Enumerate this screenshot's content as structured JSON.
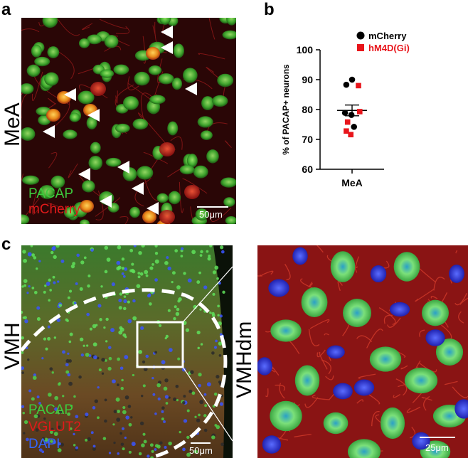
{
  "panels": {
    "a": {
      "letter": "a",
      "region": "MeA",
      "channels": [
        {
          "name": "PACAP",
          "color": "#3dcc3d"
        },
        {
          "name": "mCherry",
          "color": "#e01a1a"
        }
      ],
      "scale": "50μm"
    },
    "b": {
      "letter": "b"
    },
    "c": {
      "letter": "c",
      "region": "VMH",
      "zoom_region": "VMHdm",
      "channels": [
        {
          "name": "PACAP",
          "color": "#3dcc3d"
        },
        {
          "name": "VGLUT2",
          "color": "#e01a1a"
        },
        {
          "name": "DAPI",
          "color": "#3366ff"
        }
      ],
      "scale_left": "50μm",
      "scale_right": "25μm"
    }
  },
  "chart_data": {
    "type": "scatter",
    "ylabel": "% of PACAP+ neurons",
    "xlabel": "MeA",
    "ylim": [
      60,
      100
    ],
    "yticks": [
      60,
      70,
      80,
      90,
      100
    ],
    "mean": 79.7,
    "sem_range": [
      77.9,
      81.5
    ],
    "series": [
      {
        "name": "mCherry",
        "color": "#000000",
        "marker": "circle",
        "points": [
          {
            "x": 0.0,
            "y": 90.0
          },
          {
            "x": -0.9,
            "y": 88.3
          },
          {
            "x": -1.1,
            "y": 78.9
          },
          {
            "x": -0.1,
            "y": 78.2
          },
          {
            "x": 0.3,
            "y": 74.2
          }
        ]
      },
      {
        "name": "hM4D(Gi)",
        "color": "#e8151b",
        "marker": "square",
        "points": [
          {
            "x": 1.0,
            "y": 88.0
          },
          {
            "x": 1.2,
            "y": 79.3
          },
          {
            "x": -0.7,
            "y": 75.8
          },
          {
            "x": -0.9,
            "y": 72.8
          },
          {
            "x": -0.2,
            "y": 71.6
          }
        ]
      }
    ]
  }
}
